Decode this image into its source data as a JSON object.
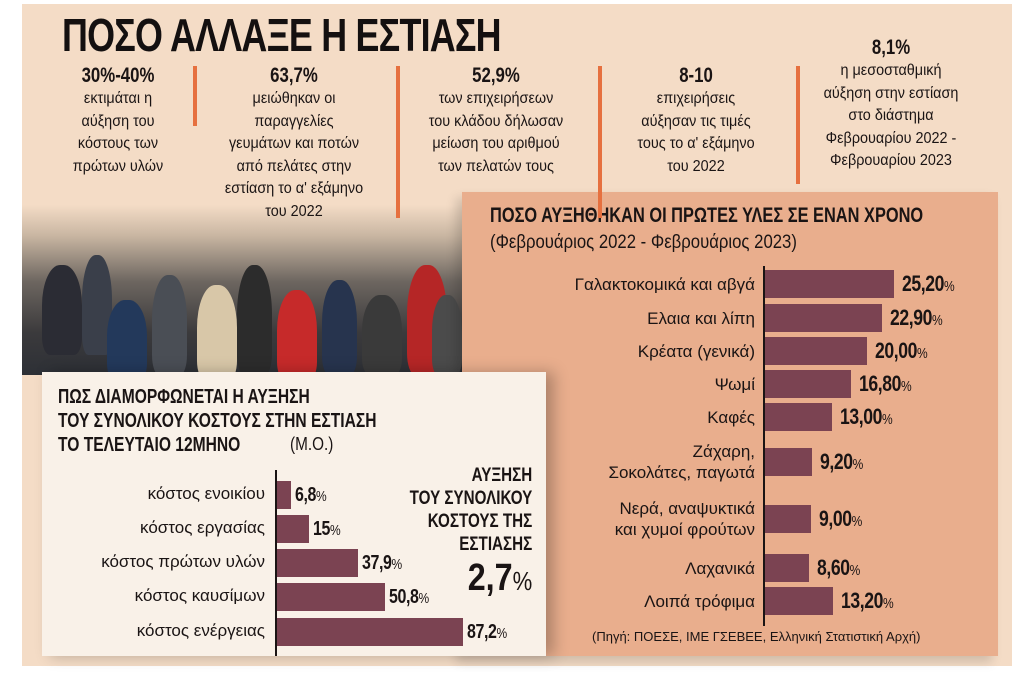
{
  "title": "ΠΟΣΟ ΑΛΛΑΞΕ Η ΕΣΤΙΑΣΗ",
  "stats": [
    {
      "value": "30%-40%",
      "lines": [
        "εκτιμάται η",
        "αύξηση του",
        "κόστους των",
        "πρώτων υλών"
      ]
    },
    {
      "value": "63,7%",
      "lines": [
        "μειώθηκαν οι",
        "παραγγελίες",
        "γευμάτων και ποτών",
        "από πελάτες στην",
        "εστίαση το α' εξάμηνο",
        "του 2022"
      ]
    },
    {
      "value": "52,9%",
      "lines": [
        "των επιχειρήσεων",
        "του κλάδου δήλωσαν",
        "μείωση του αριθμού",
        "των πελατών τους"
      ]
    },
    {
      "value": "8-10",
      "lines": [
        "επιχειρήσεις",
        "αύξησαν τις τιμές",
        "τους το α' εξάμηνο",
        "του 2022"
      ]
    },
    {
      "value": "8,1%",
      "lines": [
        "η μεσοσταθμική",
        "αύξηση στην εστίαση",
        "στο διάστημα",
        "Φεβρουαρίου 2022 -",
        "Φεβρουαρίου 2023"
      ]
    }
  ],
  "colors": {
    "bar": "#7b4352",
    "panel": "#e9ae8d",
    "background": "#f4dcc6",
    "separator": "#e6703f"
  },
  "chart_data": [
    {
      "type": "bar",
      "orientation": "horizontal",
      "title": "ΠΟΣΟ ΑΥΞΗΘΗΚΑΝ ΟΙ ΠΡΩΤΕΣ ΥΛΕΣ ΣΕ ΕΝΑΝ ΧΡΟΝΟ",
      "subtitle": "(Φεβρουάριος 2022 - Φεβρουάριος 2023)",
      "categories": [
        "Γαλακτοκομικά και αβγά",
        "Ελαια και λίπη",
        "Κρέατα (γενικά)",
        "Ψωμί",
        "Καφές",
        "Ζάχαρη, Σοκολάτες, παγωτά",
        "Νερά, αναψυκτικά και χυμοί φρούτων",
        "Λαχανικά",
        "Λοιπά τρόφιμα"
      ],
      "labels": [
        [
          "Γαλακτοκομικά και αβγά"
        ],
        [
          "Ελαια και λίπη"
        ],
        [
          "Κρέατα (γενικά)"
        ],
        [
          "Ψωμί"
        ],
        [
          "Καφές"
        ],
        [
          "Ζάχαρη,",
          "Σοκολάτες, παγωτά"
        ],
        [
          "Νερά, αναψυκτικά",
          "και χυμοί φρούτων"
        ],
        [
          "Λαχανικά"
        ],
        [
          "Λοιπά τρόφιμα"
        ]
      ],
      "values": [
        25.2,
        22.9,
        20.0,
        16.8,
        13.0,
        9.2,
        9.0,
        8.6,
        13.2
      ],
      "value_labels": [
        "25,20",
        "22,90",
        "20,00",
        "16,80",
        "13,00",
        "9,20",
        "9,00",
        "8,60",
        "13,20"
      ],
      "unit": "%",
      "source": "(Πηγή: ΠΟΕΣΕ, ΙΜΕ ΓΣΕΒΕΕ, Ελληνική Στατιστική Αρχή)"
    },
    {
      "type": "bar",
      "orientation": "horizontal",
      "title_lines": [
        "ΠΩΣ ΔΙΑΜΟΡΦΩΝΕΤΑΙ Η ΑΥΞΗΣΗ",
        "ΤΟΥ ΣΥΝΟΛΙΚΟΥ ΚΟΣΤΟΥΣ ΣΤΗΝ ΕΣΤΙΑΣΗ",
        "ΤΟ ΤΕΛΕΥΤΑΙΟ 12ΜΗΝΟ"
      ],
      "title_note": "(Μ.Ο.)",
      "categories": [
        "κόστος ενοικίου",
        "κόστος εργασίας",
        "κόστος πρώτων υλών",
        "κόστος καυσίμων",
        "κόστος ενέργειας"
      ],
      "values": [
        6.8,
        15,
        37.9,
        50.8,
        87.2
      ],
      "value_labels": [
        "6,8",
        "15",
        "37,9",
        "50,8",
        "87,2"
      ],
      "unit": "%",
      "annotation": {
        "lines": [
          "ΑΥΞΗΣΗ",
          "ΤΟΥ ΣΥΝΟΛΙΚΟΥ",
          "ΚΟΣΤΟΥΣ ΤΗΣ",
          "ΕΣΤΙΑΣΗΣ"
        ],
        "value": "2,7",
        "unit": "%"
      }
    }
  ]
}
